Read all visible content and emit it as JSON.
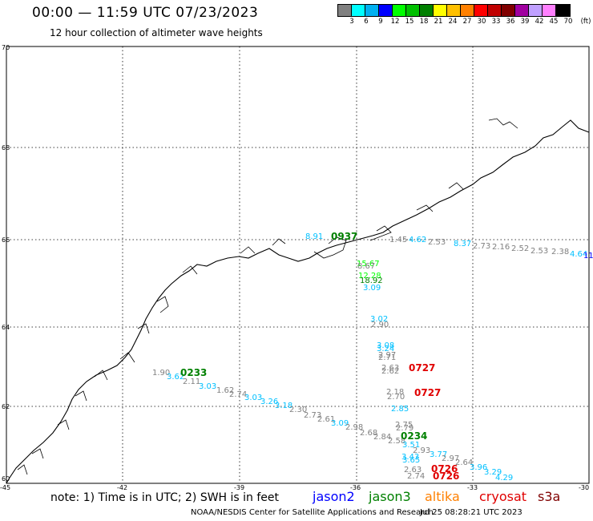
{
  "title": "00:00 — 11:59 UTC 07/23/2023",
  "subtitle": "12 hour collection of altimeter wave heights",
  "colorbar": {
    "unit_label": "(ft)",
    "swatches": [
      "#808080",
      "#00ffff",
      "#00b0f0",
      "#0000ff",
      "#00ff00",
      "#00c000",
      "#008000",
      "#ffff00",
      "#ffc000",
      "#ff8000",
      "#ff0000",
      "#c00000",
      "#800000",
      "#a000a0",
      "#c0a0ff",
      "#ff80ff",
      "#000000"
    ],
    "labels": [
      "3",
      "6",
      "9",
      "12",
      "15",
      "18",
      "21",
      "24",
      "27",
      "30",
      "33",
      "36",
      "39",
      "42",
      "45",
      "70"
    ]
  },
  "map": {
    "lat_labels": [
      "70",
      "68",
      "66",
      "64",
      "62",
      "60"
    ],
    "lon_labels": [
      "-45",
      "-42",
      "-39",
      "-36",
      "-33",
      "-30"
    ]
  },
  "swh_labels": [
    {
      "text": "8.91",
      "color": "#00c0ff"
    },
    {
      "text": "1.45",
      "color": "#808080"
    },
    {
      "text": "4.62",
      "color": "#00c0ff"
    },
    {
      "text": "2.53",
      "color": "#808080"
    },
    {
      "text": "8.37",
      "color": "#00c0ff"
    },
    {
      "text": "2.73",
      "color": "#808080"
    },
    {
      "text": "2.16",
      "color": "#808080"
    },
    {
      "text": "2.52",
      "color": "#808080"
    },
    {
      "text": "2.53",
      "color": "#808080"
    },
    {
      "text": "2.38",
      "color": "#808080"
    },
    {
      "text": "4.64",
      "color": "#00c0ff"
    },
    {
      "text": "11",
      "color": "#0000ff"
    },
    {
      "text": "15.67",
      "color": "#00ff00"
    },
    {
      "text": "8.67",
      "color": "#808080"
    },
    {
      "text": "12.28",
      "color": "#00ff00"
    },
    {
      "text": "18.92",
      "color": "#008000"
    },
    {
      "text": "3.09",
      "color": "#00c0ff"
    },
    {
      "text": "3.02",
      "color": "#00c0ff"
    },
    {
      "text": "2.90",
      "color": "#808080"
    },
    {
      "text": "3.08",
      "color": "#00c0ff"
    },
    {
      "text": "3.24",
      "color": "#00c0ff"
    },
    {
      "text": "2.97",
      "color": "#808080"
    },
    {
      "text": "2.71",
      "color": "#808080"
    },
    {
      "text": "2.63",
      "color": "#808080"
    },
    {
      "text": "2.62",
      "color": "#808080"
    },
    {
      "text": "1.90",
      "color": "#808080"
    },
    {
      "text": "3.62",
      "color": "#00c0ff"
    },
    {
      "text": "2.11",
      "color": "#808080"
    },
    {
      "text": "3.03",
      "color": "#00c0ff"
    },
    {
      "text": "1.62",
      "color": "#808080"
    },
    {
      "text": "2.74",
      "color": "#808080"
    },
    {
      "text": "3.03",
      "color": "#00c0ff"
    },
    {
      "text": "3.26",
      "color": "#00c0ff"
    },
    {
      "text": "3.18",
      "color": "#00c0ff"
    },
    {
      "text": "2.30",
      "color": "#808080"
    },
    {
      "text": "2.73",
      "color": "#808080"
    },
    {
      "text": "2.61",
      "color": "#808080"
    },
    {
      "text": "3.09",
      "color": "#00c0ff"
    },
    {
      "text": "2.98",
      "color": "#808080"
    },
    {
      "text": "2.68",
      "color": "#808080"
    },
    {
      "text": "2.84",
      "color": "#808080"
    },
    {
      "text": "2.18",
      "color": "#808080"
    },
    {
      "text": "2.70",
      "color": "#808080"
    },
    {
      "text": "2.85",
      "color": "#00c0ff"
    },
    {
      "text": "2.75",
      "color": "#808080"
    },
    {
      "text": "2.79",
      "color": "#808080"
    },
    {
      "text": "2.58",
      "color": "#808080"
    },
    {
      "text": "3.51",
      "color": "#00c0ff"
    },
    {
      "text": "2.93",
      "color": "#808080"
    },
    {
      "text": "3.77",
      "color": "#00c0ff"
    },
    {
      "text": "3.43",
      "color": "#00c0ff"
    },
    {
      "text": "3.65",
      "color": "#00c0ff"
    },
    {
      "text": "2.97",
      "color": "#808080"
    },
    {
      "text": "2.64",
      "color": "#808080"
    },
    {
      "text": "3.96",
      "color": "#00c0ff"
    },
    {
      "text": "3.29",
      "color": "#00c0ff"
    },
    {
      "text": "4.29",
      "color": "#00c0ff"
    },
    {
      "text": "2.63",
      "color": "#808080"
    },
    {
      "text": "2.74",
      "color": "#808080"
    }
  ],
  "pass_times": [
    {
      "text": "0937",
      "color": "#008000"
    },
    {
      "text": "0233",
      "color": "#008000"
    },
    {
      "text": "0727",
      "color": "#e00000"
    },
    {
      "text": "0727",
      "color": "#e00000"
    },
    {
      "text": "0234",
      "color": "#008000"
    },
    {
      "text": "0726",
      "color": "#e00000"
    },
    {
      "text": "0726",
      "color": "#e00000"
    }
  ],
  "note": "note: 1) Time is in UTC; 2) SWH is in feet",
  "legend": [
    {
      "text": "jason2",
      "color": "#0000ff"
    },
    {
      "text": "jason3",
      "color": "#008000"
    },
    {
      "text": "altika",
      "color": "#ff8000"
    },
    {
      "text": "cryosat",
      "color": "#e00000"
    },
    {
      "text": "s3a",
      "color": "#800000"
    }
  ],
  "footer": {
    "credit": "NOAA/NESDIS Center for Satellite Applications and Research",
    "generated": "Jul 25 08:28:21 UTC 2023"
  }
}
